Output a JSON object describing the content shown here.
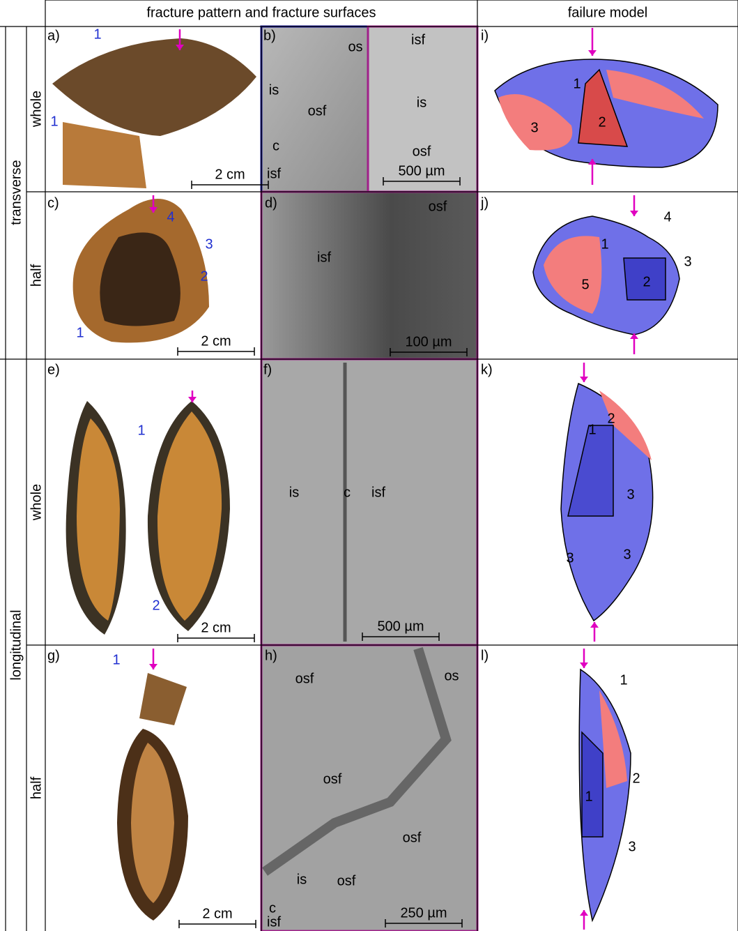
{
  "header": {
    "columns": [
      "fracture pattern and fracture surfaces",
      "failure model"
    ]
  },
  "rows": {
    "groups": [
      "transverse",
      "longitudinal"
    ],
    "sub": [
      "whole",
      "half",
      "whole",
      "half"
    ]
  },
  "panels": [
    {
      "tag": "a)",
      "labels": [
        "1",
        "1"
      ],
      "scale": "2 cm"
    },
    {
      "tag": "b)",
      "labels": [
        "os",
        "is",
        "osf",
        "c",
        "isf",
        "isf",
        "is",
        "osf"
      ],
      "scale": "500 µm"
    },
    {
      "tag": "i)",
      "labels": [
        "1",
        "2",
        "3"
      ]
    },
    {
      "tag": "c)",
      "labels": [
        "4",
        "3",
        "2",
        "1"
      ],
      "scale": "2 cm"
    },
    {
      "tag": "d)",
      "labels": [
        "osf",
        "isf"
      ],
      "scale": "100 µm"
    },
    {
      "tag": "j)",
      "labels": [
        "4",
        "1",
        "3",
        "2",
        "5"
      ]
    },
    {
      "tag": "e)",
      "labels": [
        "1",
        "2"
      ],
      "scale": "2 cm"
    },
    {
      "tag": "f)",
      "labels": [
        "is",
        "c",
        "isf"
      ],
      "scale": "500 µm"
    },
    {
      "tag": "k)",
      "labels": [
        "1",
        "2",
        "3",
        "3",
        "3"
      ]
    },
    {
      "tag": "g)",
      "labels": [
        "1"
      ],
      "scale": "2 cm"
    },
    {
      "tag": "h)",
      "labels": [
        "osf",
        "os",
        "osf",
        "osf",
        "is",
        "osf",
        "c",
        "isf"
      ],
      "scale": "250 µm"
    },
    {
      "tag": "l)",
      "labels": [
        "1",
        "1",
        "2",
        "3"
      ]
    }
  ]
}
